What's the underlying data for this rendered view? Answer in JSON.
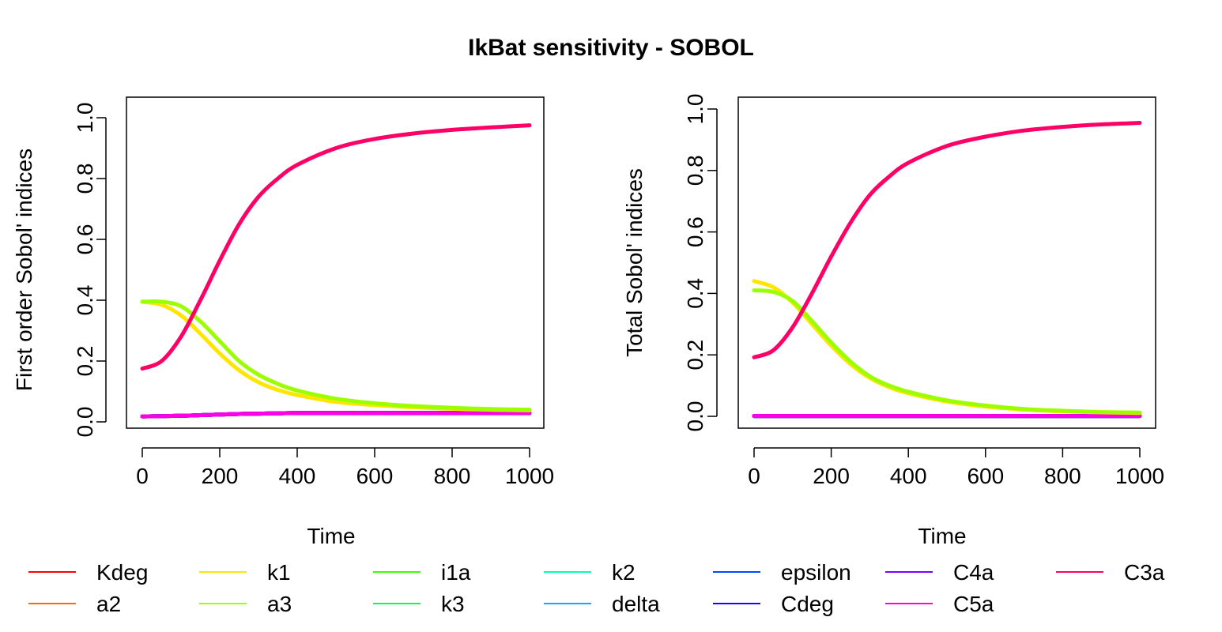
{
  "title": "IkBat sensitivity - SOBOL",
  "colors": {
    "Kdeg": "#FF0000",
    "a2": "#FF6A00",
    "k1": "#FFE600",
    "a3": "#9BFF00",
    "i1a": "#3DFF00",
    "k3": "#00FF4D",
    "k2": "#00FFB0",
    "delta": "#00B0FF",
    "epsilon": "#0048FF",
    "Cdeg": "#1A00FF",
    "C4a": "#8000FF",
    "C5a": "#FF00E6",
    "C3a": "#FF0066"
  },
  "legend": {
    "items": [
      "Kdeg",
      "a2",
      "k1",
      "a3",
      "i1a",
      "k3",
      "k2",
      "delta",
      "epsilon",
      "Cdeg",
      "C4a",
      "C5a",
      "C3a"
    ]
  },
  "chart_data": [
    {
      "type": "line",
      "xlabel": "Time",
      "ylabel": "First order Sobol' indices",
      "xlim": [
        0,
        1000
      ],
      "ylim": [
        0,
        1.0
      ],
      "xticks": [
        "0",
        "200",
        "400",
        "600",
        "800",
        "1000"
      ],
      "yticks": [
        "0.0",
        "0.2",
        "0.4",
        "0.6",
        "0.8",
        "1.0"
      ],
      "grid": false,
      "x": [
        0,
        50,
        100,
        150,
        200,
        250,
        300,
        350,
        400,
        500,
        600,
        700,
        800,
        900,
        1000
      ],
      "series": [
        {
          "name": "Kdeg",
          "values": [
            0.018,
            0.019,
            0.02,
            0.022,
            0.024,
            0.026,
            0.027,
            0.028,
            0.029,
            0.029,
            0.029,
            0.029,
            0.029,
            0.029,
            0.029
          ]
        },
        {
          "name": "a2",
          "values": [
            0.018,
            0.019,
            0.02,
            0.022,
            0.024,
            0.026,
            0.027,
            0.028,
            0.029,
            0.029,
            0.029,
            0.029,
            0.029,
            0.029,
            0.029
          ]
        },
        {
          "name": "k1",
          "values": [
            0.395,
            0.385,
            0.35,
            0.29,
            0.225,
            0.17,
            0.13,
            0.105,
            0.088,
            0.066,
            0.055,
            0.048,
            0.043,
            0.04,
            0.038
          ]
        },
        {
          "name": "a3",
          "values": [
            0.395,
            0.395,
            0.38,
            0.33,
            0.265,
            0.2,
            0.155,
            0.125,
            0.103,
            0.076,
            0.061,
            0.052,
            0.046,
            0.042,
            0.04
          ]
        },
        {
          "name": "i1a",
          "values": [
            0.018,
            0.019,
            0.02,
            0.022,
            0.024,
            0.026,
            0.027,
            0.028,
            0.029,
            0.029,
            0.029,
            0.029,
            0.029,
            0.029,
            0.029
          ]
        },
        {
          "name": "k3",
          "values": [
            0.018,
            0.019,
            0.02,
            0.022,
            0.024,
            0.026,
            0.027,
            0.028,
            0.029,
            0.029,
            0.029,
            0.029,
            0.029,
            0.029,
            0.029
          ]
        },
        {
          "name": "k2",
          "values": [
            0.018,
            0.019,
            0.02,
            0.022,
            0.024,
            0.026,
            0.027,
            0.028,
            0.029,
            0.029,
            0.029,
            0.029,
            0.029,
            0.029,
            0.029
          ]
        },
        {
          "name": "delta",
          "values": [
            0.018,
            0.019,
            0.02,
            0.022,
            0.024,
            0.026,
            0.027,
            0.028,
            0.029,
            0.029,
            0.029,
            0.029,
            0.029,
            0.029,
            0.029
          ]
        },
        {
          "name": "epsilon",
          "values": [
            0.018,
            0.019,
            0.02,
            0.022,
            0.024,
            0.026,
            0.027,
            0.028,
            0.029,
            0.029,
            0.029,
            0.029,
            0.029,
            0.029,
            0.029
          ]
        },
        {
          "name": "Cdeg",
          "values": [
            0.018,
            0.019,
            0.02,
            0.022,
            0.024,
            0.026,
            0.027,
            0.028,
            0.029,
            0.029,
            0.029,
            0.029,
            0.029,
            0.029,
            0.029
          ]
        },
        {
          "name": "C4a",
          "values": [
            0.018,
            0.019,
            0.02,
            0.022,
            0.024,
            0.026,
            0.027,
            0.028,
            0.029,
            0.029,
            0.029,
            0.029,
            0.029,
            0.029,
            0.029
          ]
        },
        {
          "name": "C5a",
          "values": [
            0.018,
            0.019,
            0.02,
            0.022,
            0.024,
            0.026,
            0.027,
            0.028,
            0.029,
            0.029,
            0.029,
            0.029,
            0.029,
            0.029,
            0.029
          ]
        },
        {
          "name": "C3a",
          "values": [
            0.175,
            0.2,
            0.28,
            0.4,
            0.53,
            0.65,
            0.74,
            0.8,
            0.845,
            0.9,
            0.93,
            0.948,
            0.96,
            0.968,
            0.975
          ]
        }
      ]
    },
    {
      "type": "line",
      "xlabel": "Time",
      "ylabel": "Total Sobol' indices",
      "xlim": [
        0,
        1000
      ],
      "ylim": [
        0,
        1.0
      ],
      "xticks": [
        "0",
        "200",
        "400",
        "600",
        "800",
        "1000"
      ],
      "yticks": [
        "0.0",
        "0.2",
        "0.4",
        "0.6",
        "0.8",
        "1.0"
      ],
      "grid": false,
      "x": [
        0,
        50,
        100,
        150,
        200,
        250,
        300,
        350,
        400,
        500,
        600,
        700,
        800,
        900,
        1000
      ],
      "series": [
        {
          "name": "Kdeg",
          "values": [
            0.001,
            0.001,
            0.001,
            0.001,
            0.001,
            0.001,
            0.001,
            0.001,
            0.001,
            0.001,
            0.001,
            0.001,
            0.001,
            0.001,
            0.001
          ]
        },
        {
          "name": "a2",
          "values": [
            0.001,
            0.001,
            0.001,
            0.001,
            0.001,
            0.001,
            0.001,
            0.001,
            0.001,
            0.001,
            0.001,
            0.001,
            0.001,
            0.001,
            0.001
          ]
        },
        {
          "name": "k1",
          "values": [
            0.44,
            0.42,
            0.37,
            0.3,
            0.23,
            0.17,
            0.125,
            0.095,
            0.075,
            0.048,
            0.032,
            0.022,
            0.016,
            0.013,
            0.011
          ]
        },
        {
          "name": "a3",
          "values": [
            0.41,
            0.405,
            0.375,
            0.31,
            0.24,
            0.178,
            0.13,
            0.1,
            0.08,
            0.052,
            0.035,
            0.024,
            0.018,
            0.014,
            0.012
          ]
        },
        {
          "name": "i1a",
          "values": [
            0.001,
            0.001,
            0.001,
            0.001,
            0.001,
            0.001,
            0.001,
            0.001,
            0.001,
            0.001,
            0.001,
            0.001,
            0.001,
            0.001,
            0.001
          ]
        },
        {
          "name": "k3",
          "values": [
            0.001,
            0.001,
            0.001,
            0.001,
            0.001,
            0.001,
            0.001,
            0.001,
            0.001,
            0.001,
            0.001,
            0.001,
            0.001,
            0.001,
            0.001
          ]
        },
        {
          "name": "k2",
          "values": [
            0.001,
            0.001,
            0.001,
            0.001,
            0.001,
            0.001,
            0.001,
            0.001,
            0.001,
            0.001,
            0.001,
            0.001,
            0.001,
            0.001,
            0.001
          ]
        },
        {
          "name": "delta",
          "values": [
            0.001,
            0.001,
            0.001,
            0.001,
            0.001,
            0.001,
            0.001,
            0.001,
            0.001,
            0.001,
            0.001,
            0.001,
            0.001,
            0.001,
            0.001
          ]
        },
        {
          "name": "epsilon",
          "values": [
            0.001,
            0.001,
            0.001,
            0.001,
            0.001,
            0.001,
            0.001,
            0.001,
            0.001,
            0.001,
            0.001,
            0.001,
            0.001,
            0.001,
            0.001
          ]
        },
        {
          "name": "Cdeg",
          "values": [
            0.001,
            0.001,
            0.001,
            0.001,
            0.001,
            0.001,
            0.001,
            0.001,
            0.001,
            0.001,
            0.001,
            0.001,
            0.001,
            0.001,
            0.001
          ]
        },
        {
          "name": "C4a",
          "values": [
            0.001,
            0.001,
            0.001,
            0.001,
            0.001,
            0.001,
            0.001,
            0.001,
            0.001,
            0.001,
            0.001,
            0.001,
            0.001,
            0.001,
            0.001
          ]
        },
        {
          "name": "C5a",
          "values": [
            0.001,
            0.001,
            0.001,
            0.001,
            0.001,
            0.001,
            0.001,
            0.001,
            0.001,
            0.001,
            0.001,
            0.001,
            0.001,
            0.001,
            0.001
          ]
        },
        {
          "name": "C3a",
          "values": [
            0.192,
            0.215,
            0.29,
            0.4,
            0.52,
            0.63,
            0.72,
            0.78,
            0.825,
            0.88,
            0.91,
            0.93,
            0.942,
            0.95,
            0.955
          ]
        }
      ]
    }
  ]
}
